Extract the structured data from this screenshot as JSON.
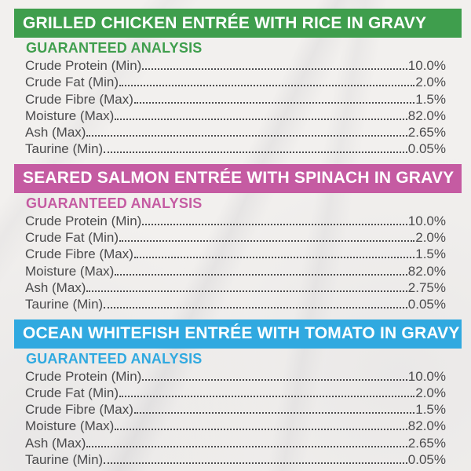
{
  "sections": [
    {
      "title": "GRILLED CHICKEN ENTRÉE WITH RICE IN GRAVY",
      "subtitle": "GUARANTEED ANALYSIS",
      "accent_color": "#3f9e4d",
      "rows": [
        {
          "label": "Crude Protein (Min)",
          "value": "10.0%"
        },
        {
          "label": "Crude Fat (Min)",
          "value": "2.0%"
        },
        {
          "label": "Crude Fibre (Max)",
          "value": "1.5%"
        },
        {
          "label": "Moisture (Max)",
          "value": "82.0%"
        },
        {
          "label": "Ash (Max)",
          "value": "2.65%"
        },
        {
          "label": "Taurine (Min)",
          "value": "0.05%"
        }
      ]
    },
    {
      "title": "SEARED SALMON ENTRÉE WITH SPINACH IN GRAVY",
      "subtitle": "GUARANTEED ANALYSIS",
      "accent_color": "#c55ba2",
      "rows": [
        {
          "label": "Crude Protein (Min)",
          "value": "10.0%"
        },
        {
          "label": "Crude Fat (Min)",
          "value": "2.0%"
        },
        {
          "label": "Crude Fibre (Max)",
          "value": "1.5%"
        },
        {
          "label": "Moisture (Max)",
          "value": "82.0%"
        },
        {
          "label": "Ash (Max)",
          "value": "2.75%"
        },
        {
          "label": "Taurine (Min)",
          "value": "0.05%"
        }
      ]
    },
    {
      "title": "OCEAN WHITEFISH ENTRÉE WITH TOMATO IN GRAVY",
      "subtitle": "GUARANTEED ANALYSIS",
      "accent_color": "#30a9e0",
      "rows": [
        {
          "label": "Crude Protein (Min)",
          "value": "10.0%"
        },
        {
          "label": "Crude Fat (Min)",
          "value": "2.0%"
        },
        {
          "label": "Crude Fibre (Max)",
          "value": "1.5%"
        },
        {
          "label": "Moisture (Max)",
          "value": "82.0%"
        },
        {
          "label": "Ash (Max)",
          "value": "2.65%"
        },
        {
          "label": "Taurine (Min)",
          "value": "0.05%"
        }
      ]
    }
  ]
}
